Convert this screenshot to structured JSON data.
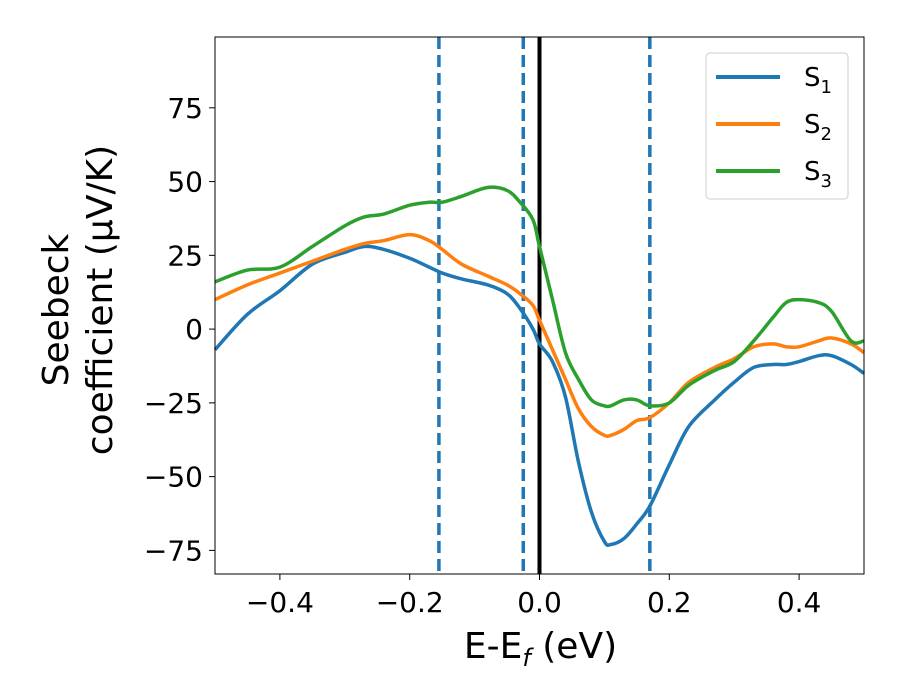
{
  "chart_data": {
    "type": "line",
    "title": "",
    "xlabel": "E-E",
    "xlabel_sub": "f",
    "xlabel_unit": " (eV)",
    "ylabel_line1": "Seebeck",
    "ylabel_line2": "coefficient  (μV/K)",
    "xlim": [
      -0.5,
      0.5
    ],
    "ylim": [
      -83,
      99
    ],
    "xticks": [
      -0.4,
      -0.2,
      0.0,
      0.2,
      0.4
    ],
    "xtick_labels": [
      "−0.4",
      "−0.2",
      "0.0",
      "0.2",
      "0.4"
    ],
    "yticks": [
      75,
      50,
      25,
      0,
      -25,
      -50,
      -75
    ],
    "ytick_labels": [
      "75",
      "50",
      "25",
      "0",
      "−25",
      "−50",
      "−75"
    ],
    "grid": false,
    "legend_position": "top-right",
    "vlines": [
      {
        "x": -0.155,
        "style": "dashed",
        "color": "#1f77b4"
      },
      {
        "x": -0.025,
        "style": "dashed",
        "color": "#1f77b4"
      },
      {
        "x": 0.0,
        "style": "solid",
        "color": "#000000"
      },
      {
        "x": 0.17,
        "style": "dashed",
        "color": "#1f77b4"
      }
    ],
    "series": [
      {
        "name": "S",
        "sub": "1",
        "color": "#1f77b4",
        "x": [
          -0.5,
          -0.45,
          -0.4,
          -0.35,
          -0.3,
          -0.27,
          -0.24,
          -0.2,
          -0.17,
          -0.15,
          -0.12,
          -0.08,
          -0.05,
          -0.03,
          -0.01,
          0.0,
          0.02,
          0.04,
          0.06,
          0.08,
          0.1,
          0.11,
          0.13,
          0.15,
          0.17,
          0.2,
          0.23,
          0.27,
          0.3,
          0.33,
          0.36,
          0.38,
          0.4,
          0.43,
          0.45,
          0.48,
          0.5
        ],
        "values": [
          -7,
          5,
          13,
          22,
          26,
          28,
          27,
          24,
          21,
          19,
          17,
          15,
          12,
          7,
          0,
          -5,
          -11,
          -23,
          -45,
          -62,
          -72,
          -73,
          -71,
          -66,
          -60,
          -46,
          -33,
          -24,
          -18,
          -13,
          -12,
          -12,
          -11,
          -9,
          -9,
          -12,
          -15
        ]
      },
      {
        "name": "S",
        "sub": "2",
        "color": "#ff7f0e",
        "x": [
          -0.5,
          -0.45,
          -0.4,
          -0.35,
          -0.3,
          -0.27,
          -0.24,
          -0.2,
          -0.17,
          -0.15,
          -0.12,
          -0.08,
          -0.05,
          -0.03,
          -0.01,
          0.0,
          0.02,
          0.04,
          0.06,
          0.08,
          0.1,
          0.11,
          0.13,
          0.15,
          0.17,
          0.2,
          0.23,
          0.27,
          0.3,
          0.33,
          0.36,
          0.38,
          0.4,
          0.43,
          0.45,
          0.48,
          0.5
        ],
        "values": [
          10,
          15,
          19,
          23,
          27,
          29,
          30,
          32,
          30,
          27,
          22,
          18,
          15,
          12,
          8,
          3,
          -7,
          -17,
          -27,
          -33,
          -36,
          -36,
          -34,
          -31,
          -30,
          -25,
          -18,
          -13,
          -10,
          -6,
          -5,
          -6,
          -6,
          -4,
          -3,
          -5,
          -8
        ]
      },
      {
        "name": "S",
        "sub": "3",
        "color": "#2ca02c",
        "x": [
          -0.5,
          -0.45,
          -0.4,
          -0.35,
          -0.3,
          -0.27,
          -0.24,
          -0.2,
          -0.17,
          -0.15,
          -0.12,
          -0.08,
          -0.05,
          -0.03,
          -0.01,
          0.0,
          0.02,
          0.04,
          0.06,
          0.08,
          0.1,
          0.11,
          0.13,
          0.15,
          0.17,
          0.2,
          0.23,
          0.27,
          0.3,
          0.33,
          0.36,
          0.38,
          0.4,
          0.43,
          0.45,
          0.48,
          0.5
        ],
        "values": [
          16,
          20,
          21,
          28,
          35,
          38,
          39,
          42,
          43,
          43,
          45,
          48,
          47,
          43,
          37,
          28,
          10,
          -8,
          -17,
          -24,
          -26,
          -26,
          -24,
          -24,
          -26,
          -25,
          -19,
          -14,
          -11,
          -4,
          4,
          9,
          10,
          9,
          6,
          -4,
          -4
        ]
      }
    ]
  }
}
